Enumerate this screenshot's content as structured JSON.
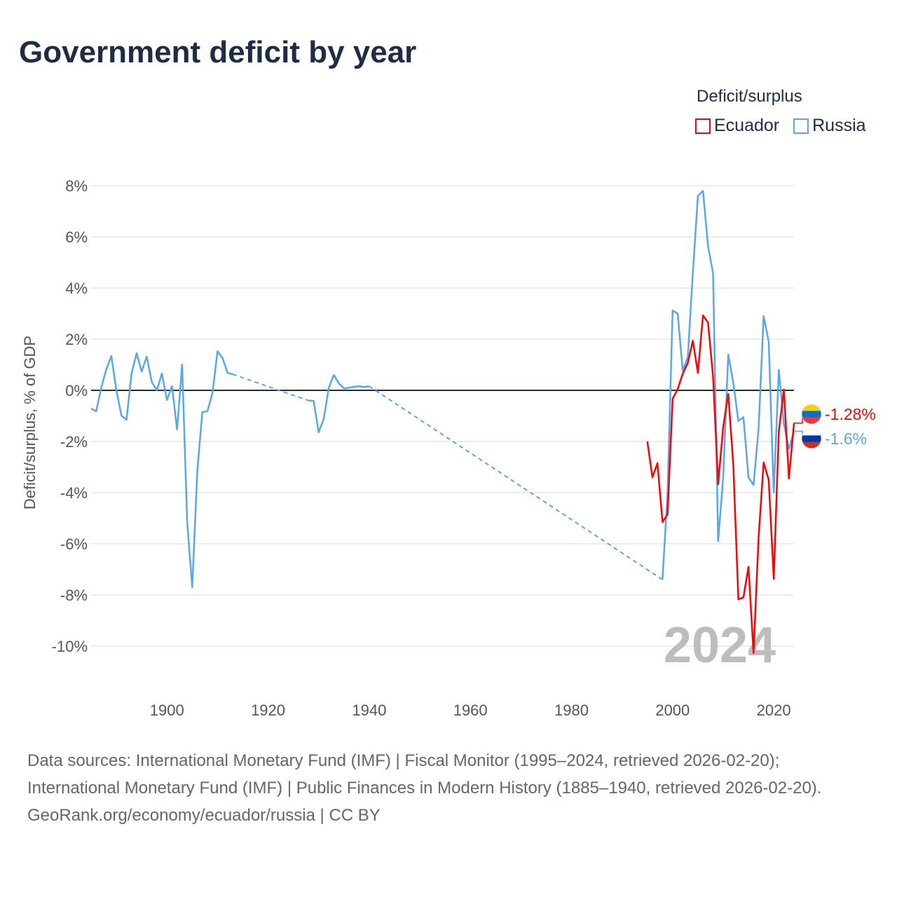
{
  "title": "Government deficit by year",
  "legend": {
    "title": "Deficit/surplus",
    "items": [
      {
        "name": "Ecuador",
        "color": "#ff0000"
      },
      {
        "name": "Russia",
        "color": "#5aa6ea"
      }
    ]
  },
  "current_year": "2024",
  "end_labels": {
    "ecuador": "-1.28%",
    "russia": "-1.6%"
  },
  "footer": {
    "sources": "Data sources: International Monetary Fund (IMF) | Fiscal Monitor (1995–2024, retrieved 2026-02-20); International Monetary Fund (IMF) | Public Finances in Modern History (1885–1940, retrieved 2026-02-20).",
    "credit": "GeoRank.org/economy/ecuador/russia | CC BY"
  },
  "chart_data": {
    "type": "line",
    "title": "Government deficit by year",
    "xlabel": "",
    "ylabel": "Deficit/surplus, % of GDP",
    "xlim": [
      1885,
      2024
    ],
    "ylim": [
      -10,
      8
    ],
    "x_ticks": [
      "1900",
      "1920",
      "1940",
      "1960",
      "1980",
      "2000",
      "2020"
    ],
    "y_ticks": [
      "8%",
      "6%",
      "4%",
      "2%",
      "0%",
      "-2%",
      "-4%",
      "-6%",
      "-8%",
      "-10%"
    ],
    "grid": true,
    "legend_position": "top-right",
    "series": [
      {
        "name": "Ecuador",
        "color": "#ff0000",
        "x": [
          1995,
          1996,
          1997,
          1998,
          1999,
          2000,
          2001,
          2002,
          2003,
          2004,
          2005,
          2006,
          2007,
          2008,
          2009,
          2010,
          2011,
          2012,
          2013,
          2014,
          2015,
          2016,
          2017,
          2018,
          2019,
          2020,
          2021,
          2022,
          2023,
          2024
        ],
        "y": [
          -2.0,
          -3.4,
          -2.85,
          -5.15,
          -4.85,
          -0.33,
          0.05,
          0.65,
          1.07,
          1.94,
          0.68,
          2.93,
          2.65,
          0.53,
          -3.67,
          -1.43,
          -0.14,
          -2.9,
          -8.17,
          -8.1,
          -6.9,
          -10.27,
          -5.75,
          -2.82,
          -3.5,
          -7.37,
          -1.6,
          0.03,
          -3.45,
          -1.28
        ]
      },
      {
        "name": "Russia",
        "color": "#5aa6ea",
        "x": [
          1885,
          1886,
          1887,
          1888,
          1889,
          1890,
          1891,
          1892,
          1893,
          1894,
          1895,
          1896,
          1897,
          1898,
          1899,
          1900,
          1901,
          1902,
          1903,
          1904,
          1905,
          1906,
          1907,
          1908,
          1909,
          1910,
          1911,
          1912,
          1913,
          1928,
          1929,
          1930,
          1931,
          1932,
          1933,
          1934,
          1935,
          1936,
          1937,
          1938,
          1939,
          1940,
          1998,
          1999,
          2000,
          2001,
          2002,
          2003,
          2004,
          2005,
          2006,
          2007,
          2008,
          2009,
          2010,
          2011,
          2012,
          2013,
          2014,
          2015,
          2016,
          2017,
          2018,
          2019,
          2020,
          2021,
          2022,
          2023,
          2024
        ],
        "y": [
          -0.71,
          -0.82,
          0.1,
          0.82,
          1.34,
          0.0,
          -0.99,
          -1.15,
          0.66,
          1.45,
          0.74,
          1.32,
          0.33,
          0.0,
          0.66,
          -0.38,
          0.16,
          -1.53,
          1.01,
          -5.15,
          -7.7,
          -3.15,
          -0.85,
          -0.82,
          -0.11,
          1.53,
          1.26,
          0.68,
          0.63,
          -0.4,
          -0.41,
          -1.64,
          -1.12,
          0.1,
          0.6,
          0.27,
          0.08,
          0.1,
          0.14,
          0.16,
          0.13,
          0.16,
          -7.4,
          -4.0,
          3.12,
          3.0,
          0.77,
          1.3,
          4.6,
          7.6,
          7.8,
          5.64,
          4.57,
          -5.9,
          -3.4,
          1.4,
          0.3,
          -1.2,
          -1.05,
          -3.4,
          -3.7,
          -1.5,
          2.9,
          1.9,
          -4.0,
          0.8,
          -1.3,
          -2.3,
          -1.6
        ]
      }
    ]
  }
}
